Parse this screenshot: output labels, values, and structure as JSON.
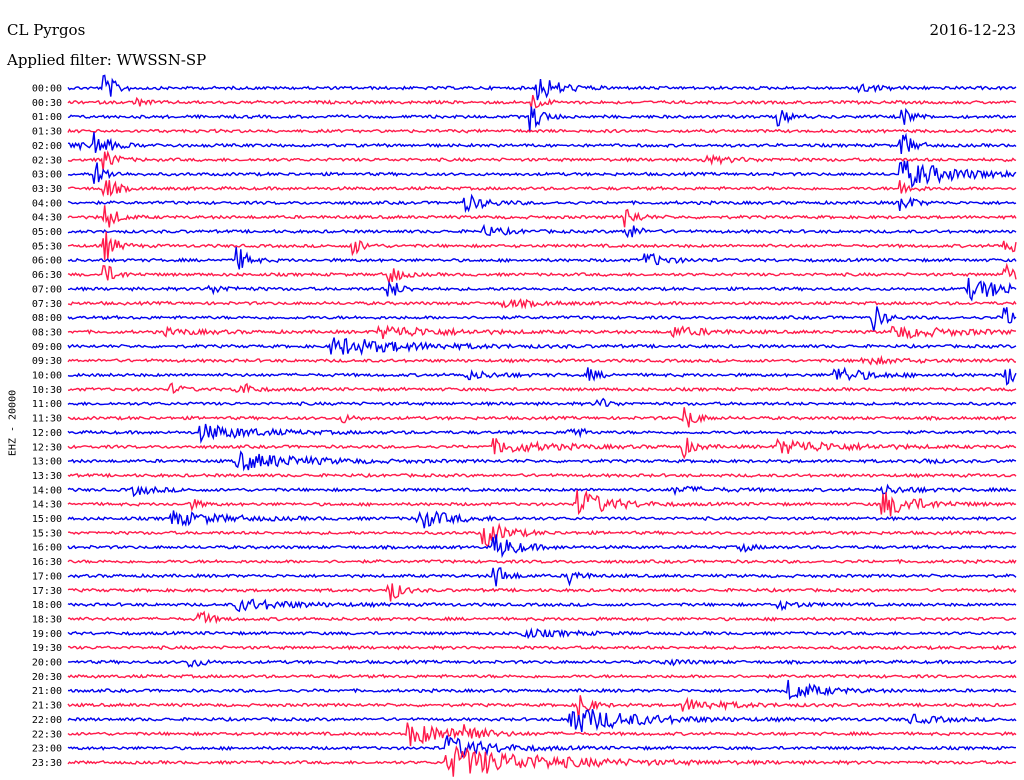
{
  "header": {
    "station": "CL Pyrgos",
    "date": "2016-12-23",
    "filter": "Applied filter: WWSSN-SP"
  },
  "chart_data": {
    "type": "line",
    "title": "CL Pyrgos",
    "ylabel": "EHZ - 20000",
    "time_labels": [
      "00:00",
      "00:30",
      "01:00",
      "01:30",
      "02:00",
      "02:30",
      "03:00",
      "03:30",
      "04:00",
      "04:30",
      "05:00",
      "05:30",
      "06:00",
      "06:30",
      "07:00",
      "07:30",
      "08:00",
      "08:30",
      "09:00",
      "09:30",
      "10:00",
      "10:30",
      "11:00",
      "11:30",
      "12:00",
      "12:30",
      "13:00",
      "13:30",
      "14:00",
      "14:30",
      "15:00",
      "15:30",
      "16:00",
      "16:30",
      "17:00",
      "17:30",
      "18:00",
      "18:30",
      "19:00",
      "19:30",
      "20:00",
      "20:30",
      "21:00",
      "21:30",
      "22:00",
      "22:30",
      "23:00",
      "23:30"
    ],
    "colors": [
      "#0000ee",
      "#ff1a4a"
    ],
    "events": [
      {
        "row": 0,
        "x": 0.04,
        "amp": 14,
        "dur": 0.01
      },
      {
        "row": 0,
        "x": 0.495,
        "amp": 14,
        "dur": 0.02
      },
      {
        "row": 0,
        "x": 0.83,
        "amp": 5,
        "dur": 0.02
      },
      {
        "row": 1,
        "x": 0.07,
        "amp": 5,
        "dur": 0.01
      },
      {
        "row": 1,
        "x": 0.49,
        "amp": 8,
        "dur": 0.01
      },
      {
        "row": 2,
        "x": 0.49,
        "amp": 14,
        "dur": 0.01
      },
      {
        "row": 2,
        "x": 0.75,
        "amp": 8,
        "dur": 0.01
      },
      {
        "row": 2,
        "x": 0.88,
        "amp": 10,
        "dur": 0.01
      },
      {
        "row": 4,
        "x": 0.0,
        "amp": 3,
        "dur": 0.04
      },
      {
        "row": 4,
        "x": 0.03,
        "amp": 14,
        "dur": 0.01
      },
      {
        "row": 4,
        "x": 0.88,
        "amp": 14,
        "dur": 0.01
      },
      {
        "row": 5,
        "x": 0.04,
        "amp": 10,
        "dur": 0.01
      },
      {
        "row": 5,
        "x": 0.67,
        "amp": 3,
        "dur": 0.04
      },
      {
        "row": 6,
        "x": 0.03,
        "amp": 12,
        "dur": 0.01
      },
      {
        "row": 6,
        "x": 0.88,
        "amp": 14,
        "dur": 0.05
      },
      {
        "row": 7,
        "x": 0.04,
        "amp": 12,
        "dur": 0.01
      },
      {
        "row": 7,
        "x": 0.88,
        "amp": 8,
        "dur": 0.01
      },
      {
        "row": 8,
        "x": 0.42,
        "amp": 8,
        "dur": 0.02
      },
      {
        "row": 8,
        "x": 0.88,
        "amp": 10,
        "dur": 0.01
      },
      {
        "row": 9,
        "x": 0.04,
        "amp": 14,
        "dur": 0.01
      },
      {
        "row": 9,
        "x": 0.59,
        "amp": 10,
        "dur": 0.01
      },
      {
        "row": 10,
        "x": 0.44,
        "amp": 5,
        "dur": 0.02
      },
      {
        "row": 10,
        "x": 0.59,
        "amp": 10,
        "dur": 0.01
      },
      {
        "row": 11,
        "x": 0.04,
        "amp": 14,
        "dur": 0.01
      },
      {
        "row": 11,
        "x": 0.3,
        "amp": 10,
        "dur": 0.01
      },
      {
        "row": 11,
        "x": 0.99,
        "amp": 10,
        "dur": 0.01
      },
      {
        "row": 12,
        "x": 0.18,
        "amp": 12,
        "dur": 0.01
      },
      {
        "row": 12,
        "x": 0.61,
        "amp": 7,
        "dur": 0.02
      },
      {
        "row": 13,
        "x": 0.04,
        "amp": 10,
        "dur": 0.01
      },
      {
        "row": 13,
        "x": 0.34,
        "amp": 10,
        "dur": 0.01
      },
      {
        "row": 13,
        "x": 0.99,
        "amp": 10,
        "dur": 0.01
      },
      {
        "row": 14,
        "x": 0.15,
        "amp": 4,
        "dur": 0.02
      },
      {
        "row": 14,
        "x": 0.34,
        "amp": 10,
        "dur": 0.01
      },
      {
        "row": 14,
        "x": 0.95,
        "amp": 10,
        "dur": 0.05
      },
      {
        "row": 15,
        "x": 0.46,
        "amp": 4,
        "dur": 0.03
      },
      {
        "row": 16,
        "x": 0.85,
        "amp": 14,
        "dur": 0.01
      },
      {
        "row": 16,
        "x": 0.99,
        "amp": 10,
        "dur": 0.01
      },
      {
        "row": 17,
        "x": 0.1,
        "amp": 3,
        "dur": 0.04
      },
      {
        "row": 17,
        "x": 0.33,
        "amp": 6,
        "dur": 0.06
      },
      {
        "row": 17,
        "x": 0.64,
        "amp": 5,
        "dur": 0.03
      },
      {
        "row": 17,
        "x": 0.87,
        "amp": 6,
        "dur": 0.06
      },
      {
        "row": 18,
        "x": 0.28,
        "amp": 9,
        "dur": 0.07
      },
      {
        "row": 19,
        "x": 0.84,
        "amp": 3,
        "dur": 0.04
      },
      {
        "row": 20,
        "x": 0.42,
        "amp": 4,
        "dur": 0.03
      },
      {
        "row": 20,
        "x": 0.55,
        "amp": 6,
        "dur": 0.01
      },
      {
        "row": 20,
        "x": 0.81,
        "amp": 8,
        "dur": 0.03
      },
      {
        "row": 20,
        "x": 0.99,
        "amp": 10,
        "dur": 0.01
      },
      {
        "row": 21,
        "x": 0.11,
        "amp": 5,
        "dur": 0.01
      },
      {
        "row": 21,
        "x": 0.18,
        "amp": 10,
        "dur": 0.01
      },
      {
        "row": 22,
        "x": 0.56,
        "amp": 6,
        "dur": 0.01
      },
      {
        "row": 23,
        "x": 0.29,
        "amp": 4,
        "dur": 0.01
      },
      {
        "row": 23,
        "x": 0.65,
        "amp": 14,
        "dur": 0.01
      },
      {
        "row": 24,
        "x": 0.14,
        "amp": 8,
        "dur": 0.05
      },
      {
        "row": 24,
        "x": 0.53,
        "amp": 8,
        "dur": 0.01
      },
      {
        "row": 25,
        "x": 0.45,
        "amp": 7,
        "dur": 0.05
      },
      {
        "row": 25,
        "x": 0.65,
        "amp": 10,
        "dur": 0.01
      },
      {
        "row": 25,
        "x": 0.75,
        "amp": 7,
        "dur": 0.06
      },
      {
        "row": 26,
        "x": 0.18,
        "amp": 9,
        "dur": 0.06
      },
      {
        "row": 26,
        "x": 0.9,
        "amp": 4,
        "dur": 0.01
      },
      {
        "row": 28,
        "x": 0.07,
        "amp": 5,
        "dur": 0.02
      },
      {
        "row": 28,
        "x": 0.64,
        "amp": 3,
        "dur": 0.04
      },
      {
        "row": 28,
        "x": 0.86,
        "amp": 4,
        "dur": 0.03
      },
      {
        "row": 29,
        "x": 0.13,
        "amp": 5,
        "dur": 0.01
      },
      {
        "row": 29,
        "x": 0.54,
        "amp": 14,
        "dur": 0.03
      },
      {
        "row": 29,
        "x": 0.86,
        "amp": 14,
        "dur": 0.03
      },
      {
        "row": 30,
        "x": 0.11,
        "amp": 7,
        "dur": 0.05
      },
      {
        "row": 30,
        "x": 0.37,
        "amp": 10,
        "dur": 0.03
      },
      {
        "row": 31,
        "x": 0.44,
        "amp": 14,
        "dur": 0.02
      },
      {
        "row": 32,
        "x": 0.45,
        "amp": 14,
        "dur": 0.02
      },
      {
        "row": 32,
        "x": 0.71,
        "amp": 5,
        "dur": 0.01
      },
      {
        "row": 34,
        "x": 0.45,
        "amp": 14,
        "dur": 0.01
      },
      {
        "row": 34,
        "x": 0.53,
        "amp": 8,
        "dur": 0.01
      },
      {
        "row": 35,
        "x": 0.34,
        "amp": 12,
        "dur": 0.01
      },
      {
        "row": 36,
        "x": 0.18,
        "amp": 6,
        "dur": 0.05
      },
      {
        "row": 36,
        "x": 0.75,
        "amp": 4,
        "dur": 0.02
      },
      {
        "row": 37,
        "x": 0.14,
        "amp": 8,
        "dur": 0.01
      },
      {
        "row": 38,
        "x": 0.48,
        "amp": 4,
        "dur": 0.04
      },
      {
        "row": 40,
        "x": 0.13,
        "amp": 6,
        "dur": 0.01
      },
      {
        "row": 40,
        "x": 0.63,
        "amp": 3,
        "dur": 0.02
      },
      {
        "row": 42,
        "x": 0.76,
        "amp": 10,
        "dur": 0.03
      },
      {
        "row": 43,
        "x": 0.54,
        "amp": 14,
        "dur": 0.01
      },
      {
        "row": 43,
        "x": 0.65,
        "amp": 6,
        "dur": 0.04
      },
      {
        "row": 44,
        "x": 0.53,
        "amp": 14,
        "dur": 0.06
      },
      {
        "row": 44,
        "x": 0.89,
        "amp": 4,
        "dur": 0.03
      },
      {
        "row": 45,
        "x": 0.36,
        "amp": 12,
        "dur": 0.04
      },
      {
        "row": 45,
        "x": 0.42,
        "amp": 14,
        "dur": 0.01
      },
      {
        "row": 46,
        "x": 0.4,
        "amp": 12,
        "dur": 0.04
      },
      {
        "row": 47,
        "x": 0.4,
        "amp": 16,
        "dur": 0.09
      }
    ]
  }
}
